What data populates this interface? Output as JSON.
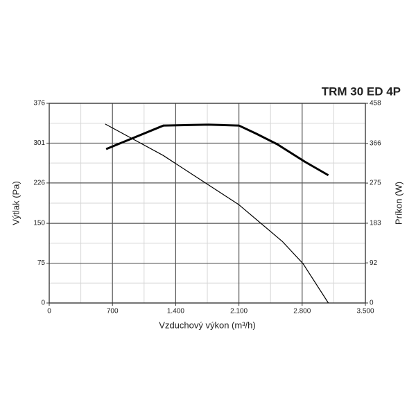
{
  "chart_data": {
    "type": "line",
    "title": "TRM 30 ED 4P",
    "x_label": "Vzduchový výkon (m³/h)",
    "y_label": "Výtlak (Pa)",
    "y2_label": "Príkon (W)",
    "xlim": [
      0,
      3500
    ],
    "xticks": [
      0,
      700,
      {
        "value": 1400,
        "label": "1.400"
      },
      {
        "value": 2100,
        "label": "2.100"
      },
      {
        "value": 2800,
        "label": "2.800"
      },
      {
        "value": 3500,
        "label": "3.500"
      }
    ],
    "ylim": [
      0,
      376
    ],
    "yticks": [
      0,
      75,
      150,
      226,
      301,
      376
    ],
    "y2lim": [
      0,
      458
    ],
    "y2ticks": [
      0,
      92,
      183,
      275,
      366,
      458
    ],
    "grid": true,
    "series": [
      {
        "color": "#000000",
        "x": [
          620,
          1260,
          2100,
          2580,
          2810,
          3090
        ],
        "values": [
          337,
          278,
          185,
          116,
          74,
          0
        ]
      },
      {
        "color": "#000000",
        "axis": "y2",
        "x": [
          630,
          1265,
          1760,
          2100,
          2295,
          2525,
          2830,
          3090
        ],
        "values": [
          353,
          407,
          409,
          407,
          388,
          364,
          324,
          293
        ]
      }
    ]
  }
}
